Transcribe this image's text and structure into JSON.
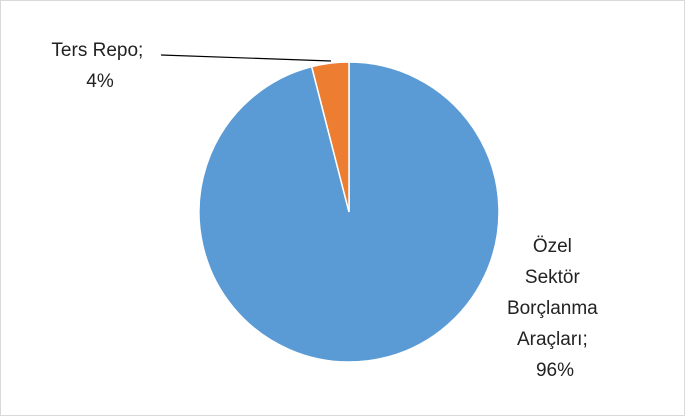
{
  "chart_data": {
    "type": "pie",
    "slices": [
      {
        "name": "Özel Sektör Borçlanma Araçları",
        "value": 96,
        "color": "#5b9bd5",
        "label_lines": [
          "Özel",
          "Sektör",
          "Borçlanma",
          "Araçları;",
          "96%"
        ]
      },
      {
        "name": "Ters Repo",
        "value": 4,
        "color": "#ed7d31",
        "label_lines": [
          "Ters Repo;",
          "4%"
        ]
      }
    ],
    "start_angle_deg": 0,
    "direction": "clockwise",
    "legend": "none",
    "data_labels": "category name and percentage"
  }
}
